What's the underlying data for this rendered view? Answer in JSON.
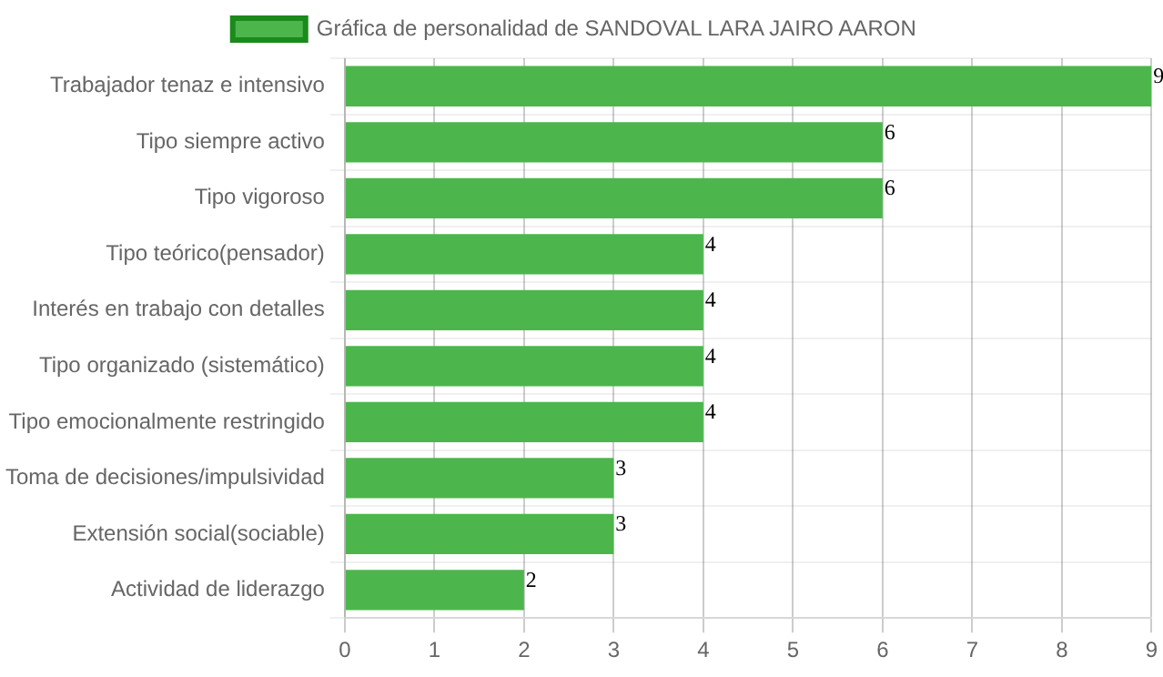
{
  "chart_data": {
    "type": "bar",
    "orientation": "horizontal",
    "categories": [
      "Trabajador tenaz e intensivo",
      "Tipo siempre activo",
      "Tipo vigoroso",
      "Tipo teórico(pensador)",
      "Interés en trabajo con detalles",
      "Tipo organizado (sistemático)",
      "Tipo emocionalmente restringido",
      "Toma de decisiones/impulsividad",
      "Extensión social(sociable)",
      "Actividad de liderazgo"
    ],
    "series": [
      {
        "name": "Gráfica de personalidad de SANDOVAL LARA JAIRO AARON",
        "color": "#4cb64c",
        "values": [
          9,
          6,
          6,
          4,
          4,
          4,
          4,
          3,
          3,
          2
        ]
      }
    ],
    "xlim": [
      0,
      9
    ],
    "xticks": [
      0,
      1,
      2,
      3,
      4,
      5,
      6,
      7,
      8,
      9
    ],
    "grid": true,
    "legend": "top",
    "data_labels": true
  }
}
